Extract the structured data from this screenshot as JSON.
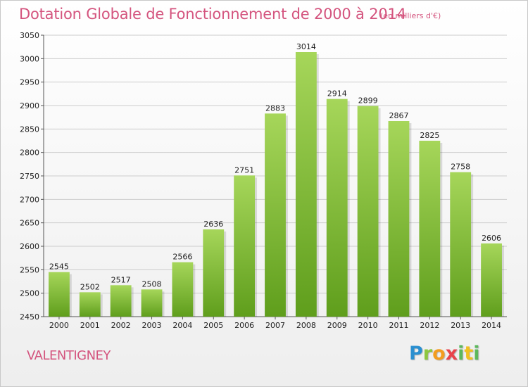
{
  "chart_data": {
    "type": "bar",
    "title": "Dotation Globale de Fonctionnement de 2000 à 2014",
    "unit_label": "(en milliers d'€)",
    "categories": [
      "2000",
      "2001",
      "2002",
      "2003",
      "2004",
      "2005",
      "2006",
      "2007",
      "2008",
      "2009",
      "2010",
      "2011",
      "2012",
      "2013",
      "2014"
    ],
    "values": [
      2545,
      2502,
      2517,
      2508,
      2566,
      2636,
      2751,
      2883,
      3014,
      2914,
      2899,
      2867,
      2825,
      2758,
      2606
    ],
    "ylim": [
      2450,
      3050
    ],
    "yticks": [
      2450,
      2500,
      2550,
      2600,
      2650,
      2700,
      2750,
      2800,
      2850,
      2900,
      2950,
      3000,
      3050
    ],
    "grid": true,
    "bar_color_top": "#a6d65a",
    "bar_color_bottom": "#5f9e1c"
  },
  "commune": "VALENTIGNEY",
  "logo": {
    "letters": [
      "P",
      "r",
      "o",
      "x",
      "i",
      "t",
      "i"
    ]
  },
  "colors": {
    "title": "#d4547e",
    "grid": "#cccccc"
  }
}
